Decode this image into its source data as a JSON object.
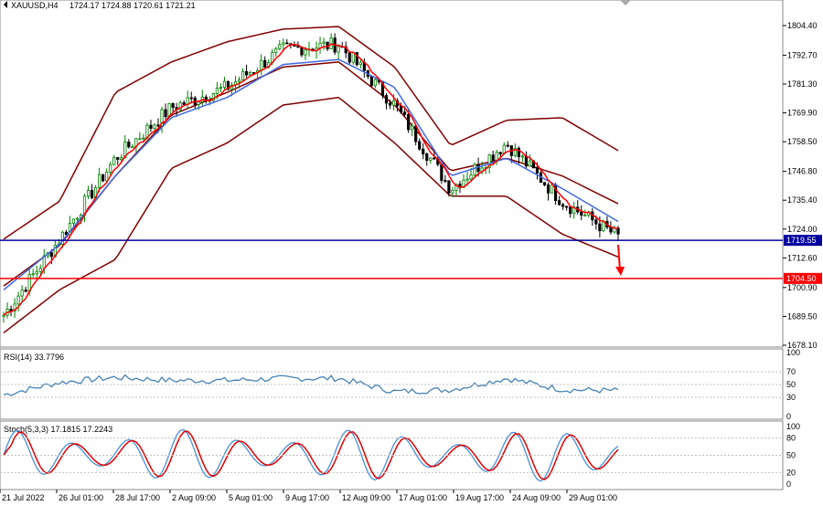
{
  "header": {
    "symbol": "XAUUSD,H4",
    "ohlc": "1724.17 1724.88 1720.61 1721.21"
  },
  "price_axis": [
    "1804.40",
    "1792.70",
    "1781.30",
    "1769.90",
    "1758.50",
    "1746.80",
    "1735.40",
    "1724.00",
    "1712.60",
    "1700.90",
    "1689.50",
    "1678.10"
  ],
  "levels": [
    {
      "price": 1719.55,
      "label": "1719.55",
      "color": "#0000a0"
    },
    {
      "price": 1704.5,
      "label": "1704.50",
      "color": "#ff0000"
    }
  ],
  "rsi": {
    "title": "RSI(14) 33.7796",
    "ticks": [
      "100",
      "70",
      "50",
      "30",
      "0"
    ]
  },
  "stoch": {
    "title": "Stoch(5,3,3) 17.1815 17.2243",
    "ticks": [
      "100",
      "80",
      "50",
      "20",
      "0"
    ]
  },
  "time_axis": [
    "21 Jul 2022",
    "26 Jul 01:00",
    "28 Jul 17:00",
    "2 Aug 09:00",
    "5 Aug 01:00",
    "9 Aug 17:00",
    "12 Aug 09:00",
    "17 Aug 01:00",
    "19 Aug 17:00",
    "24 Aug 09:00",
    "29 Aug 01:00"
  ],
  "colors": {
    "bull_candle": "#008000",
    "bear_candle": "#000000",
    "bollinger": "#800000",
    "fast_ma": "#ff0000",
    "slow_ma": "#4169e1",
    "rsi_line": "#4682b4",
    "stoch_main": "#4a90d9",
    "stoch_signal": "#e00000",
    "arrow": "#ff0000"
  },
  "chart_data": {
    "type": "line",
    "title": "XAUUSD,H4",
    "ylim": [
      1678.1,
      1810
    ],
    "x": [
      "21 Jul 2022",
      "26 Jul 01:00",
      "28 Jul 17:00",
      "2 Aug 09:00",
      "5 Aug 01:00",
      "9 Aug 17:00",
      "12 Aug 09:00",
      "17 Aug 01:00",
      "19 Aug 17:00",
      "24 Aug 09:00",
      "29 Aug 01:00",
      "29 Aug (end)"
    ],
    "series": [
      {
        "values": [
          1690,
          1720,
          1752,
          1772,
          1780,
          1795,
          1797,
          1773,
          1740,
          1758,
          1735,
          1721
        ]
      },
      {
        "values": [
          1700,
          1718,
          1745,
          1768,
          1776,
          1789,
          1791,
          1780,
          1745,
          1752,
          1740,
          1727
        ]
      },
      {
        "values": [
          1720,
          1735,
          1778,
          1790,
          1798,
          1803,
          1804,
          1788,
          1757,
          1767,
          1768,
          1755
        ]
      },
      {
        "values": [
          1683,
          1700,
          1712,
          1748,
          1758,
          1773,
          1776,
          1758,
          1737,
          1737,
          1722,
          1713
        ]
      }
    ]
  }
}
